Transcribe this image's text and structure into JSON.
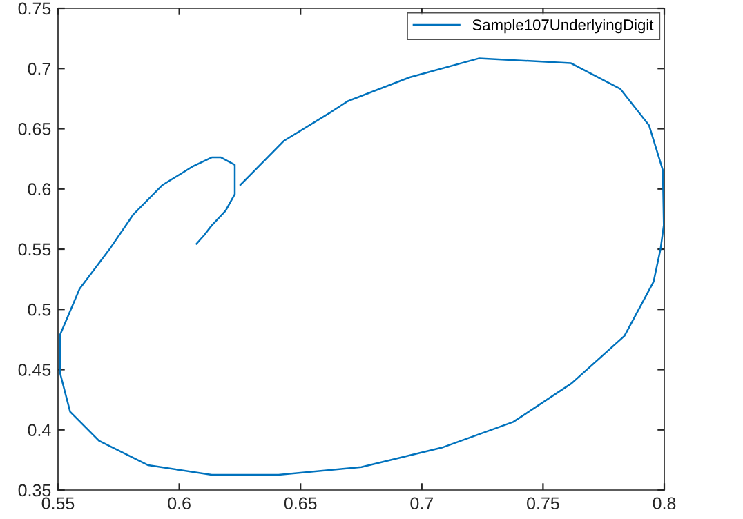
{
  "chart_data": {
    "type": "line",
    "series": [
      {
        "name": "Sample107UnderlyingDigit",
        "color": "#0072bd",
        "x": [
          0.6252,
          0.6432,
          0.6627,
          0.6694,
          0.695,
          0.7235,
          0.7614,
          0.7818,
          0.7937,
          0.7994,
          0.7998,
          0.7985,
          0.7956,
          0.7836,
          0.7618,
          0.7377,
          0.7083,
          0.6751,
          0.6409,
          0.6134,
          0.5872,
          0.5669,
          0.555,
          0.5508,
          0.5508,
          0.5589,
          0.5712,
          0.5811,
          0.5929,
          0.6054,
          0.6134,
          0.6172,
          0.6229,
          0.6229,
          0.6191,
          0.6134,
          0.6101,
          0.6071
        ],
        "values": [
          0.6033,
          0.64,
          0.664,
          0.6728,
          0.6927,
          0.7084,
          0.7045,
          0.6832,
          0.6529,
          0.6155,
          0.57,
          0.5506,
          0.523,
          0.478,
          0.4386,
          0.4065,
          0.3852,
          0.3691,
          0.3626,
          0.3626,
          0.3706,
          0.3909,
          0.415,
          0.4474,
          0.4787,
          0.517,
          0.5498,
          0.5789,
          0.603,
          0.6185,
          0.6262,
          0.6262,
          0.62,
          0.5956,
          0.5819,
          0.5697,
          0.5612,
          0.5544
        ]
      }
    ],
    "xlim": [
      0.55,
      0.8
    ],
    "xticks": [
      0.55,
      0.6,
      0.65,
      0.7,
      0.75,
      0.8
    ],
    "ylim": [
      0.35,
      0.75
    ],
    "yticks": [
      0.35,
      0.4,
      0.45,
      0.5,
      0.55,
      0.6,
      0.65,
      0.7,
      0.75
    ],
    "legend": "top right",
    "grid": false,
    "marker": "none",
    "line_style": "solid"
  }
}
